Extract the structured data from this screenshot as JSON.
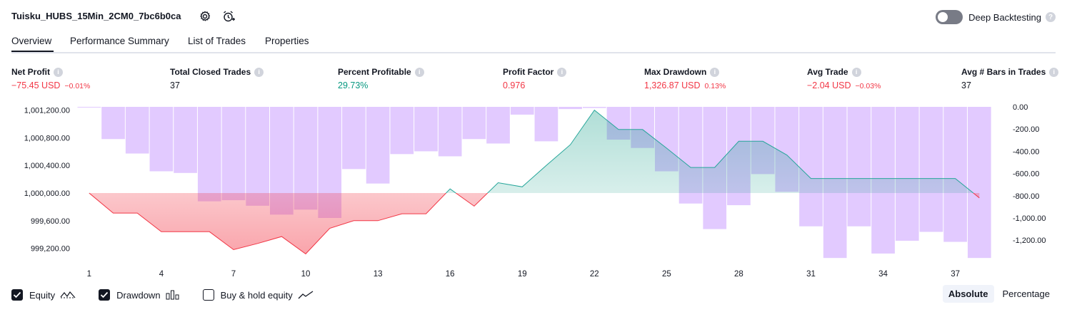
{
  "header": {
    "title": "Tuisku_HUBS_15Min_2CM0_7bc6b0ca",
    "settings_icon": "gear-icon",
    "alert_icon": "alarm-clock-add-icon",
    "deep_backtesting_label": "Deep Backtesting",
    "deep_backtesting_enabled": false,
    "help_mark": "?"
  },
  "tabs": [
    {
      "label": "Overview",
      "active": true
    },
    {
      "label": "Performance Summary",
      "active": false
    },
    {
      "label": "List of Trades",
      "active": false
    },
    {
      "label": "Properties",
      "active": false
    }
  ],
  "metrics": {
    "net_profit": {
      "label": "Net Profit",
      "value": "−75.45 USD",
      "pct": "−0.01%"
    },
    "total_closed_trades": {
      "label": "Total Closed Trades",
      "value": "37"
    },
    "percent_profitable": {
      "label": "Percent Profitable",
      "value": "29.73%"
    },
    "profit_factor": {
      "label": "Profit Factor",
      "value": "0.976"
    },
    "max_drawdown": {
      "label": "Max Drawdown",
      "value": "1,326.87 USD",
      "pct": "0.13%"
    },
    "avg_trade": {
      "label": "Avg Trade",
      "value": "−2.04 USD",
      "pct": "−0.03%"
    },
    "avg_bars": {
      "label": "Avg # Bars in Trades",
      "value": "37"
    }
  },
  "legend": {
    "equity": {
      "label": "Equity",
      "checked": true
    },
    "drawdown": {
      "label": "Drawdown",
      "checked": true
    },
    "buy_hold": {
      "label": "Buy & hold equity",
      "checked": false
    }
  },
  "mode": {
    "absolute": "Absolute",
    "percentage": "Percentage",
    "selected": "absolute"
  },
  "colors": {
    "loss": "#f23645",
    "profit": "#089981",
    "drawdown_bar": "#dfc6ff",
    "equity_line": "#26a69a",
    "text": "#131722"
  },
  "chart_data": {
    "type": "line",
    "baseline": 1000000,
    "x_ticks": [
      "1",
      "4",
      "7",
      "10",
      "13",
      "16",
      "19",
      "22",
      "25",
      "28",
      "31",
      "34",
      "37"
    ],
    "y_left_ticks": [
      "1,001,200.00",
      "1,000,800.00",
      "1,000,400.00",
      "1,000,000.00",
      "999,600.00",
      "999,200.00"
    ],
    "y_right_ticks": [
      "0.00",
      "-200.00",
      "-400.00",
      "-600.00",
      "-800.00",
      "-1,000.00",
      "-1,200.00"
    ],
    "ylim_left": [
      999000,
      1001200
    ],
    "ylim_right": [
      -1400,
      0
    ],
    "series": [
      {
        "name": "Equity",
        "x": [
          1,
          2,
          3,
          4,
          5,
          6,
          7,
          8,
          9,
          10,
          11,
          12,
          13,
          14,
          15,
          16,
          17,
          18,
          19,
          20,
          21,
          22,
          23,
          24,
          25,
          26,
          27,
          28,
          29,
          30,
          31,
          32,
          33,
          34,
          35,
          36,
          37,
          38
        ],
        "values": [
          1000000,
          999710,
          999710,
          999440,
          999440,
          999440,
          999180,
          999270,
          999370,
          999120,
          999490,
          999600,
          999600,
          999700,
          999700,
          1000060,
          999810,
          1000150,
          1000090,
          1000400,
          1000700,
          1001200,
          1000920,
          1000920,
          1000650,
          1000370,
          1000370,
          1000750,
          1000750,
          1000550,
          1000210,
          1000210,
          1000210,
          1000210,
          1000210,
          1000210,
          1000210,
          999930
        ]
      },
      {
        "name": "Drawdown",
        "x": [
          1,
          2,
          3,
          4,
          5,
          6,
          7,
          8,
          9,
          10,
          11,
          12,
          13,
          14,
          15,
          16,
          17,
          18,
          19,
          20,
          21,
          22,
          23,
          24,
          25,
          26,
          27,
          28,
          29,
          30,
          31,
          32,
          33,
          34,
          35,
          36,
          37,
          38
        ],
        "values": [
          0,
          -290,
          -420,
          -580,
          -595,
          -850,
          -840,
          -890,
          -970,
          -925,
          -1000,
          -560,
          -690,
          -425,
          -400,
          -445,
          -290,
          -330,
          -70,
          -310,
          -20,
          -10,
          -295,
          -370,
          -580,
          -870,
          -1100,
          -885,
          -605,
          -765,
          -1075,
          -1360,
          -1075,
          -1320,
          -1205,
          -1125,
          -1215,
          -1360
        ]
      }
    ]
  }
}
